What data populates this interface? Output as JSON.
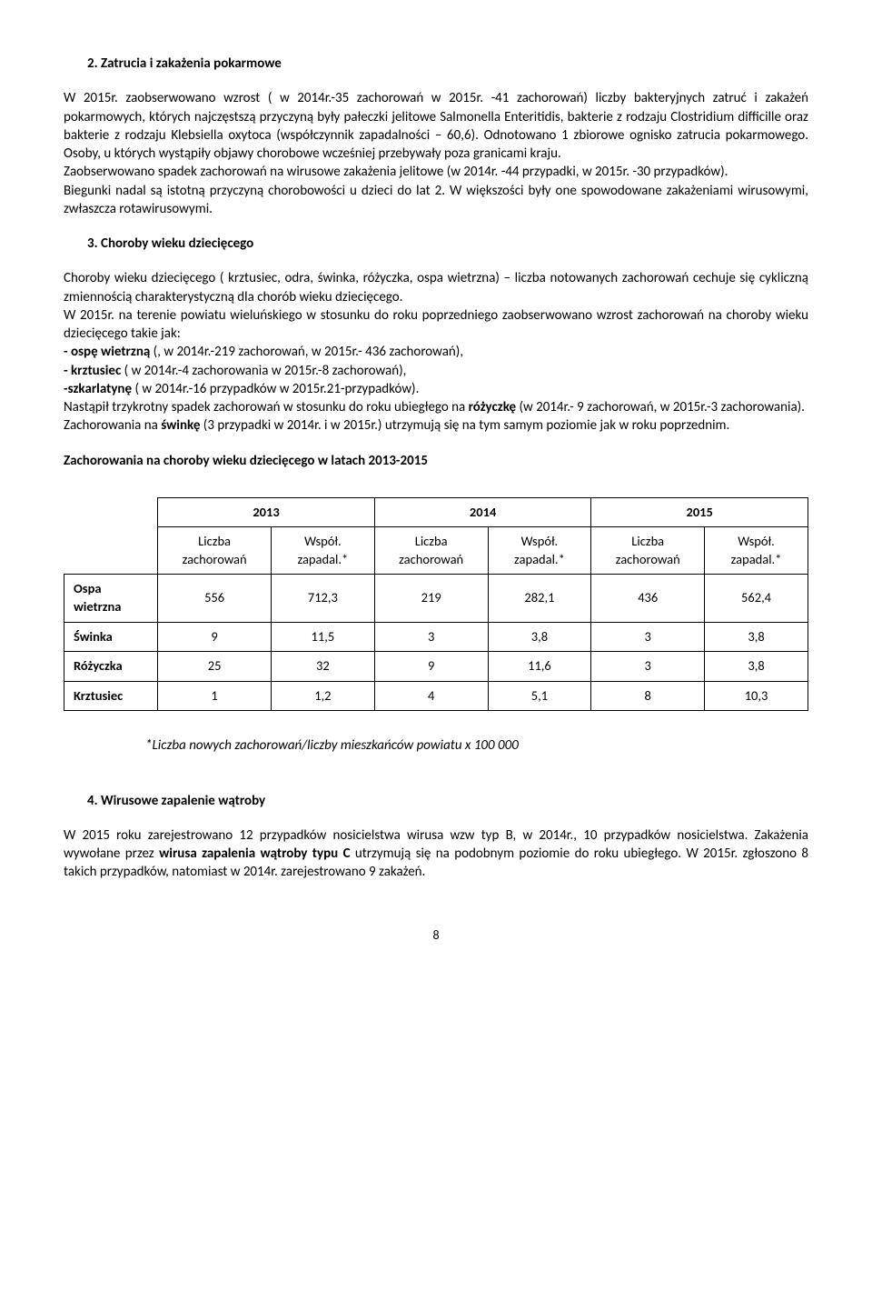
{
  "s2": {
    "heading": "2.   Zatrucia i zakażenia pokarmowe",
    "p1": "W 2015r. zaobserwowano wzrost ( w 2014r.-35 zachorowań w 2015r. -41 zachorowań) liczby bakteryjnych zatruć i zakażeń pokarmowych,  których  najczęstszą przyczyną  były pałeczki jelitowe Salmonella Enteritidis, bakterie z rodzaju Clostridium difficille oraz bakterie z rodzaju Klebsiella oxytoca  (współczynnik zapadalności – 60,6). Odnotowano 1 zbiorowe ognisko zatrucia pokarmowego. Osoby, u których wystąpiły objawy chorobowe wcześniej przebywały poza granicami kraju.",
    "p2": "Zaobserwowano spadek zachorowań na wirusowe zakażenia jelitowe (w 2014r. -44 przypadki, w 2015r. -30 przypadków).",
    "p3": "Biegunki  nadal są istotną przyczyną chorobowości u dzieci do lat 2. W większości były one spowodowane zakażeniami wirusowymi, zwłaszcza rotawirusowymi."
  },
  "s3": {
    "heading": "3.    Choroby wieku dziecięcego",
    "p1": "Choroby wieku dziecięcego ( krztusiec, odra, świnka, różyczka, ospa wietrzna) – liczba notowanych zachorowań cechuje się cykliczną zmiennością charakterystyczną dla chorób wieku dziecięcego.",
    "p2": "W 2015r. na terenie powiatu wieluńskiego w stosunku do roku poprzedniego zaobserwowano wzrost zachorowań na choroby wieku dziecięcego takie jak:",
    "li1a": "- ospę wietrzną ",
    "li1b": "(, w 2014r.-219 zachorowań, w 2015r.- 436 zachorowań),",
    "li2a": "- krztusiec ",
    "li2b": "( w 2014r.-4 zachorowania w 2015r.-8 zachorowań),",
    "li3a": " -szkarlatynę ",
    "li3b": "( w 2014r.-16 przypadków w 2015r.21-przypadków).",
    "p4a": "Nastąpił trzykrotny spadek zachorowań w stosunku do roku ubiegłego na ",
    "p4b": "różyczkę ",
    "p4c": "(w 2014r.- 9 zachorowań, w 2015r.-3 zachorowania).",
    "p5a": "Zachorowania na ",
    "p5b": "świnkę ",
    "p5c": "(3 przypadki w 2014r. i w 2015r.) utrzymują się na tym samym  poziomie jak w  roku poprzednim."
  },
  "table": {
    "title": "Zachorowania  na choroby wieku dziecięcego w latach 2013-2015",
    "years": [
      "2013",
      "2014",
      "2015"
    ],
    "sub1": "Liczba zachorowań",
    "sub2": "Współ. zapadal.*",
    "rows": [
      {
        "label": "Ospa wietrzna",
        "v": [
          "556",
          "712,3",
          "219",
          "282,1",
          "436",
          "562,4"
        ]
      },
      {
        "label": "Świnka",
        "v": [
          "9",
          "11,5",
          "3",
          "3,8",
          "3",
          "3,8"
        ]
      },
      {
        "label": "Różyczka",
        "v": [
          "25",
          "32",
          "9",
          "11,6",
          "3",
          "3,8"
        ]
      },
      {
        "label": "Krztusiec",
        "v": [
          "1",
          "1,2",
          "4",
          "5,1",
          "8",
          "10,3"
        ]
      }
    ],
    "footnote": "*Liczba nowych zachorowań/liczby mieszkańców powiatu x 100 000"
  },
  "s4": {
    "heading": "4.   Wirusowe zapalenie wątroby",
    "p1a": "W 2015 roku  zarejestrowano 12 przypadków nosicielstwa wirusa wzw typ B, w 2014r., 10 przypadków nosicielstwa. Zakażenia  wywołane przez ",
    "p1b": "wirusa zapalenia wątroby typu C ",
    "p1c": "utrzymują się  na podobnym poziomie do roku ubiegłego. W 2015r. zgłoszono 8 takich przypadków,  natomiast w  2014r. zarejestrowano 9 zakażeń."
  },
  "pageNum": "8"
}
